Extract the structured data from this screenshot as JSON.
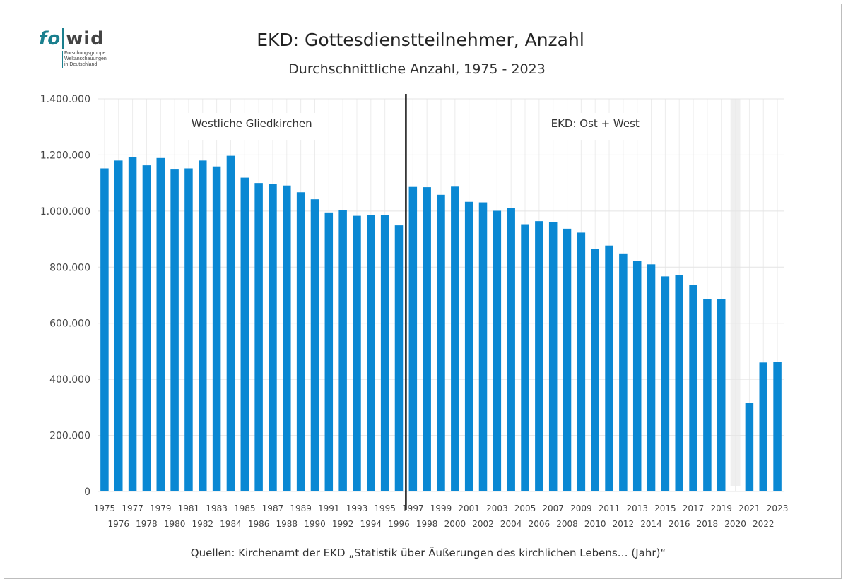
{
  "logo": {
    "brand_fo": "fo",
    "brand_wid": "wid",
    "lines": [
      "Forschungsgruppe",
      "Weltanschauungen",
      "in Deutschland"
    ]
  },
  "chart_data": {
    "type": "bar",
    "title": "EKD: Gottesdienstteilnehmer, Anzahl",
    "subtitle": "Durchschnittliche Anzahl, 1975 - 2023",
    "xlabel": "",
    "ylabel": "",
    "ylim": [
      0,
      1400000
    ],
    "yticks": [
      0,
      200000,
      400000,
      600000,
      800000,
      1000000,
      1200000,
      1400000
    ],
    "ytick_labels": [
      "0",
      "200.000",
      "400.000",
      "600.000",
      "800.000",
      "1.000.000",
      "1.200.000",
      "1.400.000"
    ],
    "grid": true,
    "bar_color": "#0a88d3",
    "categories": [
      "1975",
      "1976",
      "1977",
      "1978",
      "1979",
      "1980",
      "1981",
      "1982",
      "1983",
      "1984",
      "1985",
      "1986",
      "1987",
      "1988",
      "1989",
      "1990",
      "1991",
      "1992",
      "1993",
      "1994",
      "1995",
      "1996",
      "1997",
      "1998",
      "1999",
      "2000",
      "2001",
      "2002",
      "2003",
      "2004",
      "2005",
      "2006",
      "2007",
      "2008",
      "2009",
      "2010",
      "2011",
      "2012",
      "2013",
      "2014",
      "2015",
      "2016",
      "2017",
      "2018",
      "2019",
      "2020",
      "2021",
      "2022",
      "2023"
    ],
    "values": [
      1152000,
      1180000,
      1192000,
      1163000,
      1189000,
      1148000,
      1152000,
      1180000,
      1159000,
      1197000,
      1119000,
      1100000,
      1097000,
      1091000,
      1067000,
      1042000,
      995000,
      1003000,
      983000,
      986000,
      985000,
      949000,
      1086000,
      1085000,
      1058000,
      1087000,
      1033000,
      1031000,
      1001000,
      1010000,
      953000,
      964000,
      960000,
      937000,
      923000,
      864000,
      877000,
      849000,
      821000,
      810000,
      767000,
      773000,
      736000,
      685000,
      685000,
      null,
      315000,
      460000,
      461000
    ],
    "missing_category": "2020",
    "missing_shade_color": "#efefef",
    "divider_after": "1996",
    "divider_color": "#111111",
    "regions": [
      {
        "label": "Westliche Gliedkirchen",
        "from": "1975",
        "to": "1996"
      },
      {
        "label": "EKD: Ost + West",
        "from": "1997",
        "to": "2023"
      }
    ],
    "source": "Quellen: Kirchenamt der EKD „Statistik über Äußerungen des kirchlichen Lebens… (Jahr)“"
  }
}
